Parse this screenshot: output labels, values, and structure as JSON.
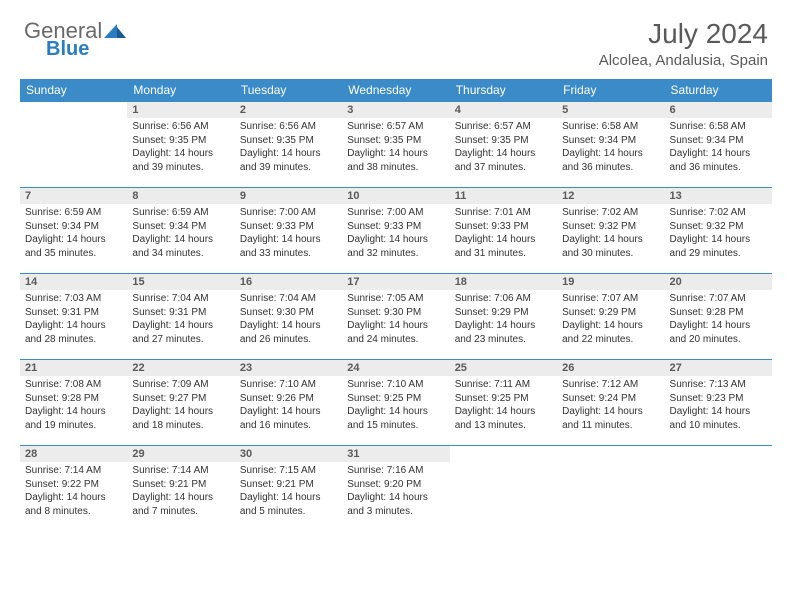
{
  "logo": {
    "part1": "General",
    "part2": "Blue"
  },
  "title": "July 2024",
  "location": "Alcolea, Andalusia, Spain",
  "colors": {
    "header_bg": "#3b8bc8",
    "header_text": "#ffffff",
    "daynum_bg": "#ececec",
    "text": "#333333",
    "logo_gray": "#6a6a6a",
    "logo_blue": "#2a7dc0",
    "title_color": "#5a5a5a",
    "row_border": "#3b8bc8"
  },
  "weekdays": [
    "Sunday",
    "Monday",
    "Tuesday",
    "Wednesday",
    "Thursday",
    "Friday",
    "Saturday"
  ],
  "weeks": [
    [
      null,
      {
        "n": "1",
        "sr": "6:56 AM",
        "ss": "9:35 PM",
        "dh": "14",
        "dm": "39"
      },
      {
        "n": "2",
        "sr": "6:56 AM",
        "ss": "9:35 PM",
        "dh": "14",
        "dm": "39"
      },
      {
        "n": "3",
        "sr": "6:57 AM",
        "ss": "9:35 PM",
        "dh": "14",
        "dm": "38"
      },
      {
        "n": "4",
        "sr": "6:57 AM",
        "ss": "9:35 PM",
        "dh": "14",
        "dm": "37"
      },
      {
        "n": "5",
        "sr": "6:58 AM",
        "ss": "9:34 PM",
        "dh": "14",
        "dm": "36"
      },
      {
        "n": "6",
        "sr": "6:58 AM",
        "ss": "9:34 PM",
        "dh": "14",
        "dm": "36"
      }
    ],
    [
      {
        "n": "7",
        "sr": "6:59 AM",
        "ss": "9:34 PM",
        "dh": "14",
        "dm": "35"
      },
      {
        "n": "8",
        "sr": "6:59 AM",
        "ss": "9:34 PM",
        "dh": "14",
        "dm": "34"
      },
      {
        "n": "9",
        "sr": "7:00 AM",
        "ss": "9:33 PM",
        "dh": "14",
        "dm": "33"
      },
      {
        "n": "10",
        "sr": "7:00 AM",
        "ss": "9:33 PM",
        "dh": "14",
        "dm": "32"
      },
      {
        "n": "11",
        "sr": "7:01 AM",
        "ss": "9:33 PM",
        "dh": "14",
        "dm": "31"
      },
      {
        "n": "12",
        "sr": "7:02 AM",
        "ss": "9:32 PM",
        "dh": "14",
        "dm": "30"
      },
      {
        "n": "13",
        "sr": "7:02 AM",
        "ss": "9:32 PM",
        "dh": "14",
        "dm": "29"
      }
    ],
    [
      {
        "n": "14",
        "sr": "7:03 AM",
        "ss": "9:31 PM",
        "dh": "14",
        "dm": "28"
      },
      {
        "n": "15",
        "sr": "7:04 AM",
        "ss": "9:31 PM",
        "dh": "14",
        "dm": "27"
      },
      {
        "n": "16",
        "sr": "7:04 AM",
        "ss": "9:30 PM",
        "dh": "14",
        "dm": "26"
      },
      {
        "n": "17",
        "sr": "7:05 AM",
        "ss": "9:30 PM",
        "dh": "14",
        "dm": "24"
      },
      {
        "n": "18",
        "sr": "7:06 AM",
        "ss": "9:29 PM",
        "dh": "14",
        "dm": "23"
      },
      {
        "n": "19",
        "sr": "7:07 AM",
        "ss": "9:29 PM",
        "dh": "14",
        "dm": "22"
      },
      {
        "n": "20",
        "sr": "7:07 AM",
        "ss": "9:28 PM",
        "dh": "14",
        "dm": "20"
      }
    ],
    [
      {
        "n": "21",
        "sr": "7:08 AM",
        "ss": "9:28 PM",
        "dh": "14",
        "dm": "19"
      },
      {
        "n": "22",
        "sr": "7:09 AM",
        "ss": "9:27 PM",
        "dh": "14",
        "dm": "18"
      },
      {
        "n": "23",
        "sr": "7:10 AM",
        "ss": "9:26 PM",
        "dh": "14",
        "dm": "16"
      },
      {
        "n": "24",
        "sr": "7:10 AM",
        "ss": "9:25 PM",
        "dh": "14",
        "dm": "15"
      },
      {
        "n": "25",
        "sr": "7:11 AM",
        "ss": "9:25 PM",
        "dh": "14",
        "dm": "13"
      },
      {
        "n": "26",
        "sr": "7:12 AM",
        "ss": "9:24 PM",
        "dh": "14",
        "dm": "11"
      },
      {
        "n": "27",
        "sr": "7:13 AM",
        "ss": "9:23 PM",
        "dh": "14",
        "dm": "10"
      }
    ],
    [
      {
        "n": "28",
        "sr": "7:14 AM",
        "ss": "9:22 PM",
        "dh": "14",
        "dm": "8"
      },
      {
        "n": "29",
        "sr": "7:14 AM",
        "ss": "9:21 PM",
        "dh": "14",
        "dm": "7"
      },
      {
        "n": "30",
        "sr": "7:15 AM",
        "ss": "9:21 PM",
        "dh": "14",
        "dm": "5"
      },
      {
        "n": "31",
        "sr": "7:16 AM",
        "ss": "9:20 PM",
        "dh": "14",
        "dm": "3"
      },
      null,
      null,
      null
    ]
  ]
}
